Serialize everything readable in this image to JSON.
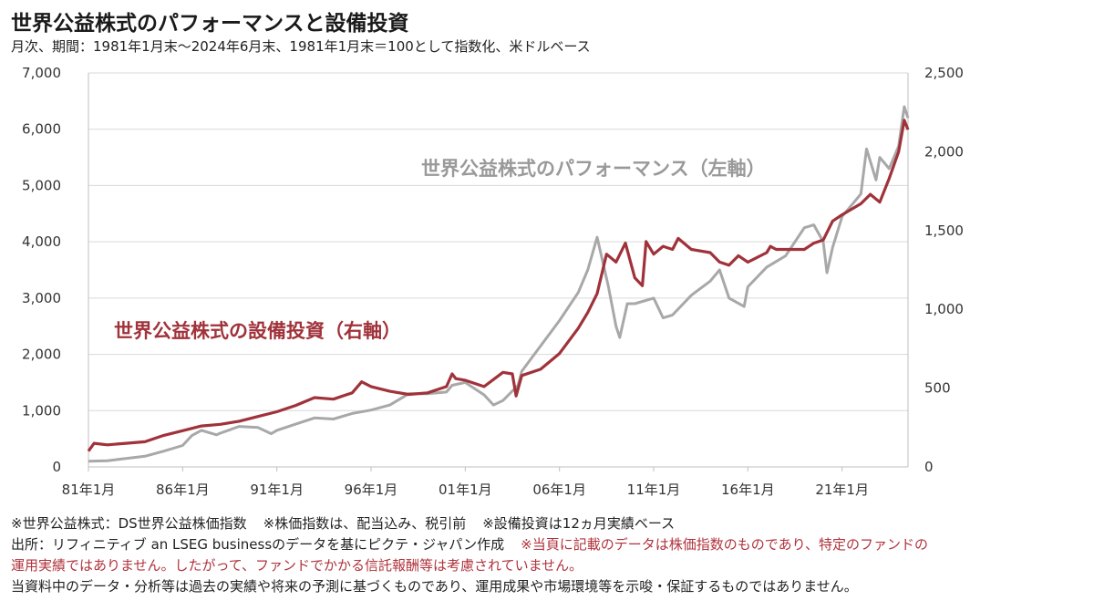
{
  "title": "世界公益株式のパフォーマンスと設備投資",
  "subtitle": "月次、期間：1981年1月末～2024年6月末、1981年1月末＝100として指数化、米ドルベース",
  "colors": {
    "performance": "#a8a8a8",
    "capex": "#a0323a",
    "grid": "#d9d9d9"
  },
  "chart_data": {
    "type": "line",
    "x_tick_labels": [
      "81年1月",
      "86年1月",
      "91年1月",
      "96年1月",
      "01年1月",
      "06年1月",
      "11年1月",
      "16年1月",
      "21年1月"
    ],
    "x_tick_years": [
      1981,
      1986,
      1991,
      1996,
      2001,
      2006,
      2011,
      2016,
      2021
    ],
    "xlim": [
      1981.0,
      2024.5
    ],
    "left_axis": {
      "ylim": [
        0,
        7000
      ],
      "tick_labels": [
        "0",
        "1,000",
        "2,000",
        "3,000",
        "4,000",
        "5,000",
        "6,000",
        "7,000"
      ],
      "tick_values": [
        0,
        1000,
        2000,
        3000,
        4000,
        5000,
        6000,
        7000
      ]
    },
    "right_axis": {
      "ylim": [
        0,
        2500
      ],
      "tick_labels": [
        "0",
        "500",
        "1,000",
        "1,500",
        "2,000",
        "2,500"
      ],
      "tick_values": [
        0,
        500,
        1000,
        1500,
        2000,
        2500
      ]
    },
    "grid": true,
    "series": [
      {
        "name": "世界公益株式のパフォーマンス（左軸）",
        "axis": "left",
        "x": [
          1981.0,
          1982.0,
          1983.0,
          1984.0,
          1985.0,
          1986.0,
          1986.5,
          1987.0,
          1987.8,
          1988.0,
          1989.0,
          1990.0,
          1990.7,
          1991.0,
          1992.0,
          1993.0,
          1994.0,
          1995.0,
          1996.0,
          1997.0,
          1998.0,
          1999.0,
          2000.0,
          2000.3,
          2001.0,
          2002.0,
          2002.5,
          2003.0,
          2003.8,
          2004.0,
          2005.0,
          2006.0,
          2007.0,
          2007.5,
          2008.0,
          2008.6,
          2009.0,
          2009.2,
          2009.6,
          2010.0,
          2011.0,
          2011.5,
          2012.0,
          2013.0,
          2014.0,
          2014.5,
          2015.0,
          2015.8,
          2016.0,
          2017.0,
          2018.0,
          2019.0,
          2019.5,
          2020.0,
          2020.2,
          2020.5,
          2021.0,
          2022.0,
          2022.3,
          2022.8,
          2023.0,
          2023.5,
          2024.0,
          2024.3,
          2024.5
        ],
        "values": [
          100,
          110,
          150,
          190,
          280,
          380,
          560,
          650,
          570,
          600,
          720,
          700,
          590,
          650,
          760,
          870,
          850,
          950,
          1010,
          1100,
          1300,
          1300,
          1330,
          1450,
          1500,
          1280,
          1100,
          1180,
          1450,
          1700,
          2150,
          2600,
          3100,
          3500,
          4080,
          3200,
          2500,
          2300,
          2900,
          2900,
          3000,
          2650,
          2700,
          3050,
          3300,
          3500,
          3000,
          2850,
          3200,
          3550,
          3750,
          4250,
          4300,
          4000,
          3450,
          3900,
          4450,
          4850,
          5650,
          5100,
          5500,
          5300,
          5700,
          6400,
          6200
        ]
      },
      {
        "name": "世界公益株式の設備投資（右軸）",
        "axis": "right",
        "x": [
          1981.0,
          1981.3,
          1982.0,
          1983.0,
          1984.0,
          1985.0,
          1986.0,
          1987.0,
          1988.0,
          1989.0,
          1990.0,
          1991.0,
          1992.0,
          1993.0,
          1994.0,
          1995.0,
          1995.5,
          1996.0,
          1997.0,
          1998.0,
          1999.0,
          2000.0,
          2000.3,
          2000.5,
          2001.0,
          2002.0,
          2003.0,
          2003.5,
          2003.7,
          2004.0,
          2005.0,
          2006.0,
          2007.0,
          2007.5,
          2008.0,
          2008.5,
          2009.0,
          2009.5,
          2010.0,
          2010.4,
          2010.6,
          2011.0,
          2011.5,
          2012.0,
          2012.3,
          2013.0,
          2014.0,
          2014.5,
          2015.0,
          2015.5,
          2016.0,
          2017.0,
          2017.2,
          2017.5,
          2018.0,
          2019.0,
          2019.5,
          2020.0,
          2020.5,
          2021.0,
          2022.0,
          2022.5,
          2023.0,
          2023.5,
          2024.0,
          2024.3,
          2024.5
        ],
        "values": [
          100,
          150,
          140,
          150,
          160,
          200,
          230,
          260,
          270,
          290,
          320,
          350,
          390,
          440,
          430,
          470,
          540,
          510,
          480,
          460,
          470,
          510,
          590,
          560,
          550,
          510,
          600,
          590,
          450,
          580,
          620,
          720,
          880,
          980,
          1100,
          1350,
          1300,
          1420,
          1200,
          1150,
          1430,
          1350,
          1400,
          1380,
          1450,
          1380,
          1360,
          1300,
          1280,
          1340,
          1300,
          1360,
          1400,
          1380,
          1380,
          1380,
          1420,
          1440,
          1560,
          1600,
          1670,
          1730,
          1680,
          1830,
          2000,
          2200,
          2140
        ]
      }
    ],
    "annotations": [
      {
        "text": "世界公益株式のパフォーマンス（左軸）",
        "series": 0
      },
      {
        "text": "世界公益株式の設備投資（右軸）",
        "series": 1
      }
    ]
  },
  "notes": {
    "line1_a": "※世界公益株式：DS世界公益株価指数",
    "line1_b": "※株価指数は、配当込み、税引前",
    "line1_c": "※設備投資は12ヵ月実績ベース",
    "line2_black": "出所：リフィニティブ an LSEG businessのデータを基にピクテ・ジャパン作成",
    "line2_red": "※当頁に記載のデータは株価指数のものであり、特定のファンドの",
    "line3_red": "運用実績ではありません。したがって、ファンドでかかる信託報酬等は考慮されていません。",
    "line4": "当資料中のデータ・分析等は過去の実績や将来の予測に基づくものであり、運用成果や市場環境等を示唆・保証するものではありません。"
  }
}
